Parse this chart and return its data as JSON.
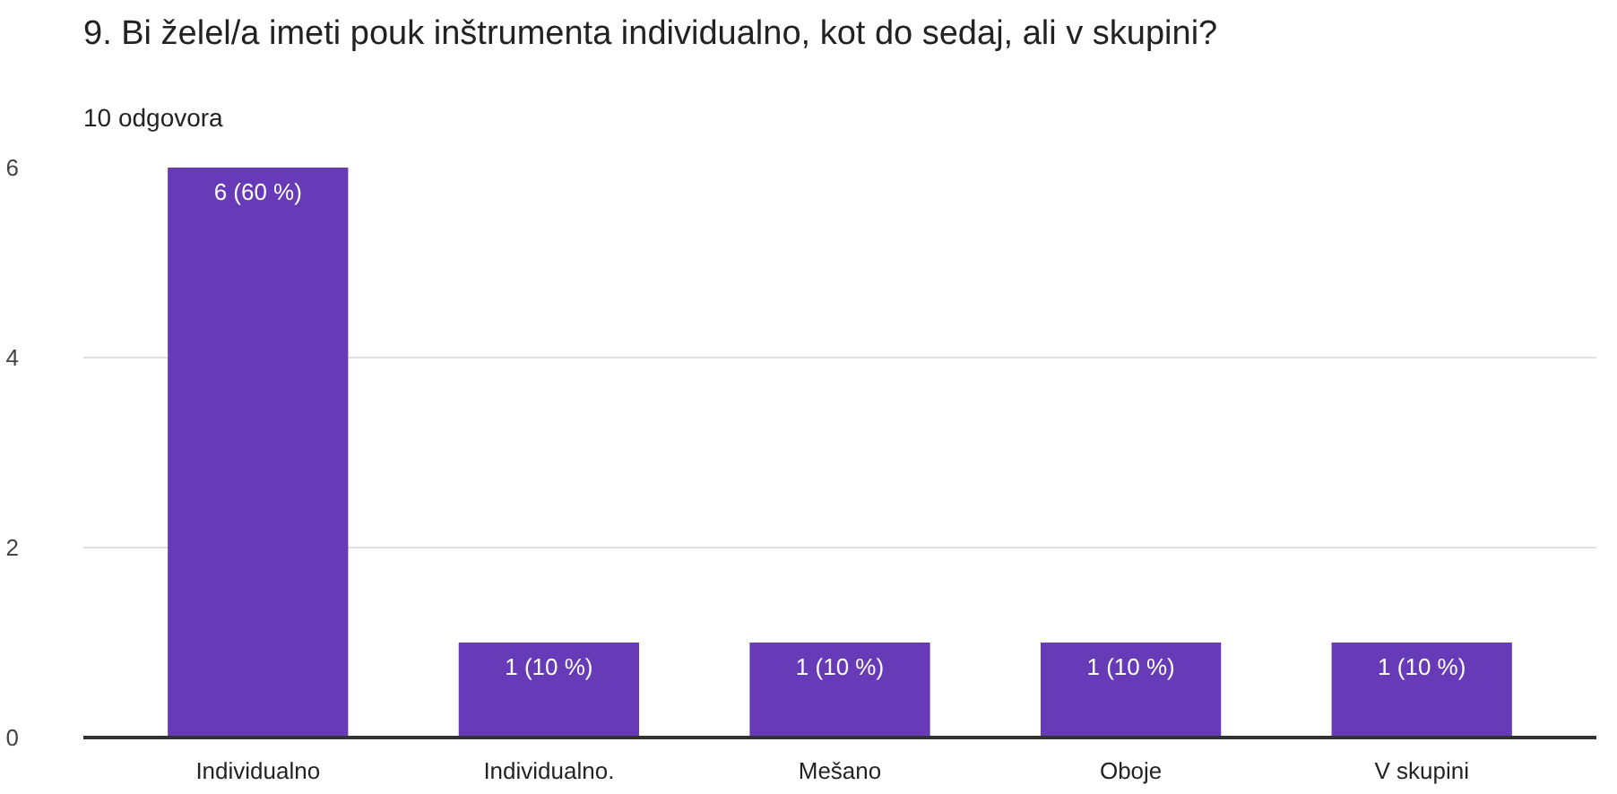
{
  "chart_data": {
    "type": "bar",
    "title": "9. Bi želel/a imeti pouk inštrumenta individualno, kot do sedaj, ali v skupini?",
    "subtitle": "10 odgovora",
    "categories": [
      "Individualno",
      "Individualno.",
      "Mešano",
      "Oboje",
      "V skupini"
    ],
    "values": [
      6,
      1,
      1,
      1,
      1
    ],
    "color": "#673ab7",
    "value_labels": [
      "6 (60 %)",
      "1 (10 %)",
      "1 (10 %)",
      "1 (10 %)",
      "1 (10 %)"
    ],
    "ylim": [
      0,
      6
    ],
    "yticks": [
      0,
      2,
      4,
      6
    ],
    "grid": "y"
  }
}
